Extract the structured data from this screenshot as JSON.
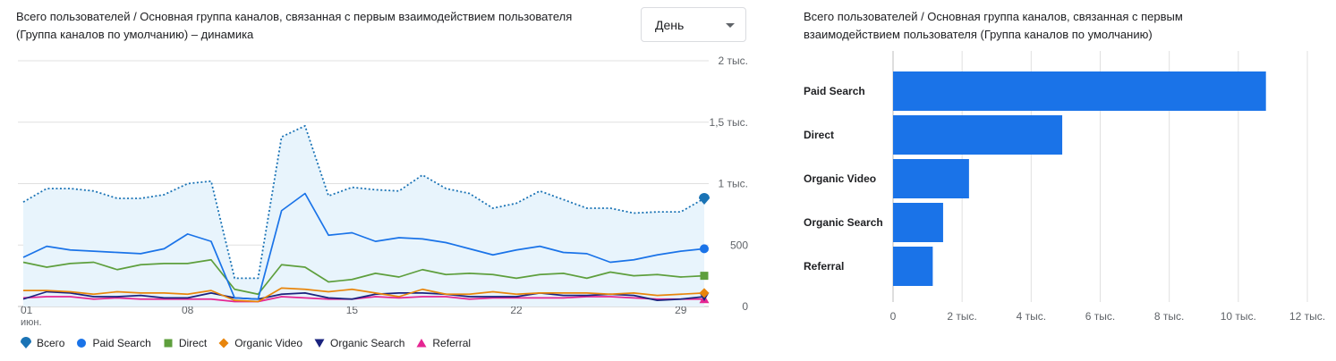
{
  "line_chart": {
    "title": "Всего пользователей / Основная группа каналов, связанная с первым взаимодействием пользователя (Группа каналов по умолчанию) – динамика",
    "period_dropdown": "День",
    "legend": [
      "Всего",
      "Paid Search",
      "Direct",
      "Organic Video",
      "Organic Search",
      "Referral"
    ]
  },
  "bar_chart": {
    "title": "Всего пользователей / Основная группа каналов, связанная с первым взаимодействием пользователя (Группа каналов по умолчанию)"
  },
  "colors": {
    "total": "#1a73b5",
    "paid_search": "#1a73e8",
    "direct": "#5e9f3d",
    "organic_video": "#e8850c",
    "organic_search": "#1a237e",
    "referral": "#e52592",
    "area_fill": "#e8f4fc",
    "grid": "#e0e0e0",
    "bar": "#1a73e8"
  },
  "chart_data": [
    {
      "type": "line",
      "x": [
        1,
        2,
        3,
        4,
        5,
        6,
        7,
        8,
        9,
        10,
        11,
        12,
        13,
        14,
        15,
        16,
        17,
        18,
        19,
        20,
        21,
        22,
        23,
        24,
        25,
        26,
        27,
        28,
        29,
        30
      ],
      "x_ticks": [
        {
          "day": 1,
          "label": "01",
          "sublabel": "июн."
        },
        {
          "day": 8,
          "label": "08"
        },
        {
          "day": 15,
          "label": "15"
        },
        {
          "day": 22,
          "label": "22"
        },
        {
          "day": 29,
          "label": "29"
        }
      ],
      "ylim": [
        0,
        2000
      ],
      "y_ticks": [
        {
          "value": 0,
          "label": "0"
        },
        {
          "value": 500,
          "label": "500"
        },
        {
          "value": 1000,
          "label": "1 тыс."
        },
        {
          "value": 1500,
          "label": "1,5 тыс."
        },
        {
          "value": 2000,
          "label": "2 тыс."
        }
      ],
      "series": [
        {
          "name": "Всего",
          "style": "dotted-area",
          "values": [
            850,
            960,
            960,
            940,
            880,
            880,
            910,
            1000,
            1020,
            230,
            230,
            1380,
            1470,
            900,
            970,
            950,
            940,
            1070,
            960,
            920,
            800,
            840,
            940,
            870,
            800,
            800,
            760,
            770,
            770,
            880
          ]
        },
        {
          "name": "Paid Search",
          "values": [
            400,
            490,
            460,
            450,
            440,
            430,
            470,
            590,
            530,
            70,
            60,
            780,
            920,
            580,
            600,
            530,
            560,
            550,
            520,
            470,
            420,
            460,
            490,
            440,
            430,
            360,
            380,
            420,
            450,
            470
          ]
        },
        {
          "name": "Direct",
          "values": [
            360,
            320,
            350,
            360,
            300,
            340,
            350,
            350,
            380,
            140,
            100,
            340,
            320,
            200,
            220,
            270,
            240,
            300,
            260,
            270,
            260,
            230,
            260,
            270,
            230,
            280,
            250,
            260,
            240,
            250
          ]
        },
        {
          "name": "Organic Video",
          "values": [
            130,
            130,
            120,
            100,
            120,
            110,
            110,
            100,
            130,
            50,
            40,
            150,
            140,
            120,
            140,
            110,
            80,
            140,
            100,
            100,
            120,
            100,
            110,
            110,
            110,
            100,
            110,
            90,
            100,
            110
          ]
        },
        {
          "name": "Organic Search",
          "values": [
            60,
            120,
            110,
            80,
            80,
            90,
            70,
            70,
            110,
            70,
            60,
            100,
            110,
            70,
            60,
            100,
            110,
            110,
            100,
            80,
            80,
            80,
            110,
            90,
            90,
            100,
            90,
            50,
            60,
            80
          ]
        },
        {
          "name": "Referral",
          "values": [
            70,
            80,
            80,
            60,
            70,
            60,
            60,
            60,
            60,
            40,
            40,
            80,
            70,
            60,
            60,
            80,
            70,
            80,
            80,
            60,
            70,
            70,
            70,
            70,
            80,
            80,
            70,
            60,
            60,
            60
          ]
        }
      ]
    },
    {
      "type": "bar",
      "orientation": "horizontal",
      "categories": [
        "Paid Search",
        "Direct",
        "Organic Video",
        "Organic Search",
        "Referral"
      ],
      "values": [
        10800,
        4900,
        2200,
        1450,
        1150
      ],
      "xlim": [
        0,
        12000
      ],
      "x_ticks": [
        {
          "value": 0,
          "label": "0"
        },
        {
          "value": 2000,
          "label": "2 тыс."
        },
        {
          "value": 4000,
          "label": "4 тыс."
        },
        {
          "value": 6000,
          "label": "6 тыс."
        },
        {
          "value": 8000,
          "label": "8 тыс."
        },
        {
          "value": 10000,
          "label": "10 тыс."
        },
        {
          "value": 12000,
          "label": "12 тыс."
        }
      ]
    }
  ]
}
